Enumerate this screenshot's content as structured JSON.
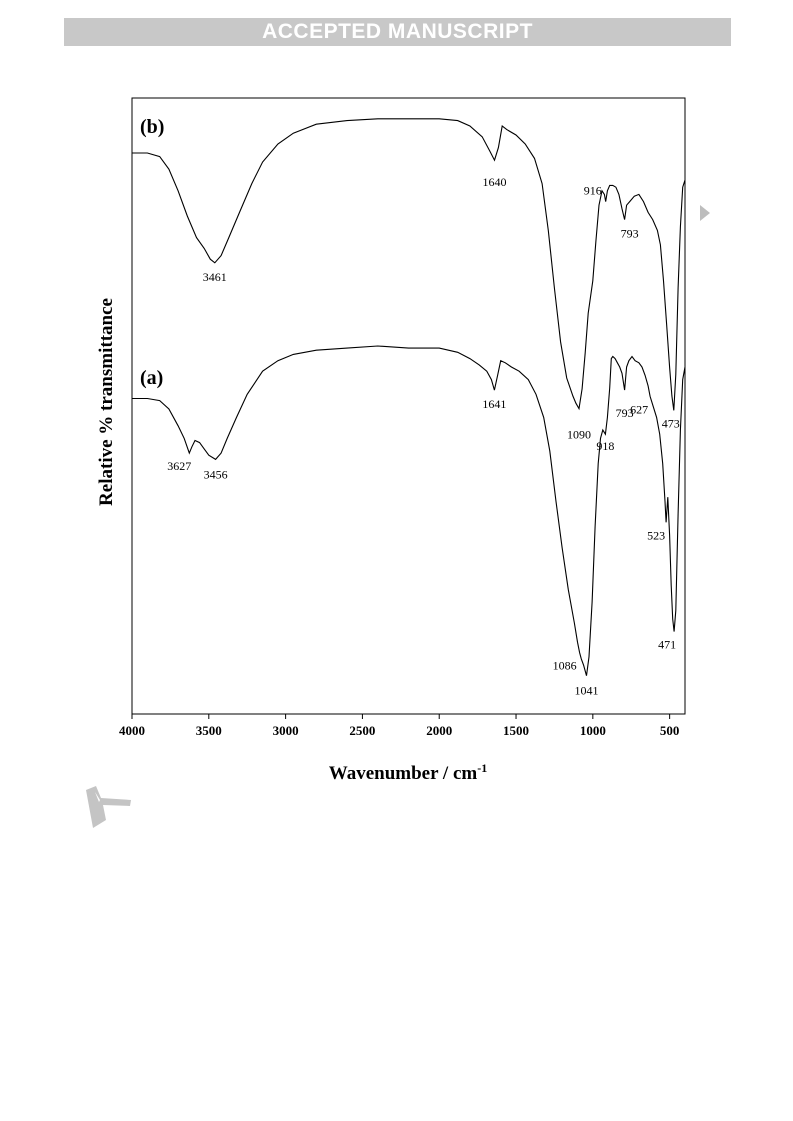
{
  "banner": {
    "text": "ACCEPTED MANUSCRIPT"
  },
  "chart_data": {
    "type": "line",
    "xlabel": "Wavenumber / cm",
    "xlabel_superscript": "-1",
    "ylabel": "Relative % transmittance",
    "xlim": [
      4000,
      400
    ],
    "xticks": [
      4000,
      3500,
      3000,
      2500,
      2000,
      1500,
      1000,
      500
    ],
    "grid": false,
    "series": [
      {
        "name": "(b)",
        "points": [
          [
            4000,
            0.125
          ],
          [
            3900,
            0.125
          ],
          [
            3820,
            0.135
          ],
          [
            3760,
            0.17
          ],
          [
            3700,
            0.23
          ],
          [
            3640,
            0.3
          ],
          [
            3580,
            0.36
          ],
          [
            3530,
            0.39
          ],
          [
            3490,
            0.42
          ],
          [
            3461,
            0.43
          ],
          [
            3420,
            0.41
          ],
          [
            3370,
            0.36
          ],
          [
            3300,
            0.29
          ],
          [
            3220,
            0.21
          ],
          [
            3150,
            0.15
          ],
          [
            3050,
            0.1
          ],
          [
            2950,
            0.07
          ],
          [
            2800,
            0.045
          ],
          [
            2600,
            0.035
          ],
          [
            2400,
            0.03
          ],
          [
            2200,
            0.03
          ],
          [
            2000,
            0.03
          ],
          [
            1880,
            0.035
          ],
          [
            1800,
            0.05
          ],
          [
            1720,
            0.08
          ],
          [
            1670,
            0.12
          ],
          [
            1640,
            0.145
          ],
          [
            1615,
            0.11
          ],
          [
            1590,
            0.05
          ],
          [
            1560,
            0.06
          ],
          [
            1500,
            0.075
          ],
          [
            1440,
            0.1
          ],
          [
            1380,
            0.14
          ],
          [
            1330,
            0.21
          ],
          [
            1290,
            0.34
          ],
          [
            1250,
            0.5
          ],
          [
            1210,
            0.65
          ],
          [
            1170,
            0.75
          ],
          [
            1130,
            0.8
          ],
          [
            1110,
            0.82
          ],
          [
            1090,
            0.835
          ],
          [
            1070,
            0.78
          ],
          [
            1050,
            0.68
          ],
          [
            1030,
            0.57
          ],
          [
            1000,
            0.48
          ],
          [
            980,
            0.37
          ],
          [
            960,
            0.27
          ],
          [
            940,
            0.23
          ],
          [
            925,
            0.24
          ],
          [
            916,
            0.26
          ],
          [
            905,
            0.23
          ],
          [
            890,
            0.215
          ],
          [
            870,
            0.215
          ],
          [
            850,
            0.22
          ],
          [
            830,
            0.24
          ],
          [
            810,
            0.28
          ],
          [
            793,
            0.31
          ],
          [
            780,
            0.27
          ],
          [
            760,
            0.26
          ],
          [
            730,
            0.245
          ],
          [
            700,
            0.24
          ],
          [
            670,
            0.26
          ],
          [
            640,
            0.29
          ],
          [
            610,
            0.31
          ],
          [
            580,
            0.34
          ],
          [
            560,
            0.38
          ],
          [
            540,
            0.48
          ],
          [
            520,
            0.6
          ],
          [
            500,
            0.72
          ],
          [
            485,
            0.8
          ],
          [
            473,
            0.84
          ],
          [
            460,
            0.74
          ],
          [
            445,
            0.5
          ],
          [
            430,
            0.33
          ],
          [
            415,
            0.22
          ],
          [
            400,
            0.2
          ]
        ],
        "annotations": [
          "1640",
          "3461",
          "916",
          "793",
          "1090",
          "473"
        ]
      },
      {
        "name": "(a)",
        "points": [
          [
            4000,
            0.175
          ],
          [
            3900,
            0.175
          ],
          [
            3820,
            0.18
          ],
          [
            3760,
            0.2
          ],
          [
            3700,
            0.24
          ],
          [
            3660,
            0.27
          ],
          [
            3627,
            0.305
          ],
          [
            3610,
            0.29
          ],
          [
            3590,
            0.275
          ],
          [
            3560,
            0.28
          ],
          [
            3530,
            0.295
          ],
          [
            3500,
            0.31
          ],
          [
            3456,
            0.32
          ],
          [
            3420,
            0.305
          ],
          [
            3380,
            0.27
          ],
          [
            3320,
            0.22
          ],
          [
            3250,
            0.165
          ],
          [
            3150,
            0.11
          ],
          [
            3050,
            0.085
          ],
          [
            2950,
            0.07
          ],
          [
            2800,
            0.06
          ],
          [
            2600,
            0.055
          ],
          [
            2400,
            0.05
          ],
          [
            2200,
            0.055
          ],
          [
            2000,
            0.055
          ],
          [
            1880,
            0.065
          ],
          [
            1800,
            0.08
          ],
          [
            1740,
            0.095
          ],
          [
            1690,
            0.11
          ],
          [
            1660,
            0.13
          ],
          [
            1641,
            0.155
          ],
          [
            1620,
            0.12
          ],
          [
            1600,
            0.085
          ],
          [
            1570,
            0.09
          ],
          [
            1530,
            0.1
          ],
          [
            1480,
            0.11
          ],
          [
            1420,
            0.13
          ],
          [
            1370,
            0.165
          ],
          [
            1320,
            0.22
          ],
          [
            1280,
            0.3
          ],
          [
            1240,
            0.42
          ],
          [
            1200,
            0.53
          ],
          [
            1160,
            0.63
          ],
          [
            1120,
            0.71
          ],
          [
            1100,
            0.755
          ],
          [
            1086,
            0.78
          ],
          [
            1075,
            0.795
          ],
          [
            1060,
            0.81
          ],
          [
            1041,
            0.835
          ],
          [
            1025,
            0.79
          ],
          [
            1005,
            0.66
          ],
          [
            985,
            0.48
          ],
          [
            965,
            0.33
          ],
          [
            950,
            0.27
          ],
          [
            935,
            0.25
          ],
          [
            918,
            0.26
          ],
          [
            905,
            0.22
          ],
          [
            890,
            0.15
          ],
          [
            880,
            0.08
          ],
          [
            870,
            0.075
          ],
          [
            855,
            0.08
          ],
          [
            840,
            0.09
          ],
          [
            825,
            0.1
          ],
          [
            810,
            0.115
          ],
          [
            793,
            0.155
          ],
          [
            780,
            0.1
          ],
          [
            765,
            0.085
          ],
          [
            745,
            0.075
          ],
          [
            725,
            0.085
          ],
          [
            700,
            0.09
          ],
          [
            680,
            0.1
          ],
          [
            660,
            0.12
          ],
          [
            640,
            0.145
          ],
          [
            627,
            0.17
          ],
          [
            610,
            0.19
          ],
          [
            585,
            0.22
          ],
          [
            565,
            0.26
          ],
          [
            545,
            0.33
          ],
          [
            530,
            0.42
          ],
          [
            523,
            0.47
          ],
          [
            512,
            0.41
          ],
          [
            500,
            0.5
          ],
          [
            490,
            0.62
          ],
          [
            480,
            0.7
          ],
          [
            471,
            0.73
          ],
          [
            460,
            0.68
          ],
          [
            445,
            0.45
          ],
          [
            430,
            0.25
          ],
          [
            415,
            0.13
          ],
          [
            400,
            0.1
          ]
        ],
        "annotations": [
          "3627",
          "3456",
          "1641",
          "1086",
          "1041",
          "918",
          "793",
          "627",
          "523",
          "471"
        ]
      }
    ]
  }
}
